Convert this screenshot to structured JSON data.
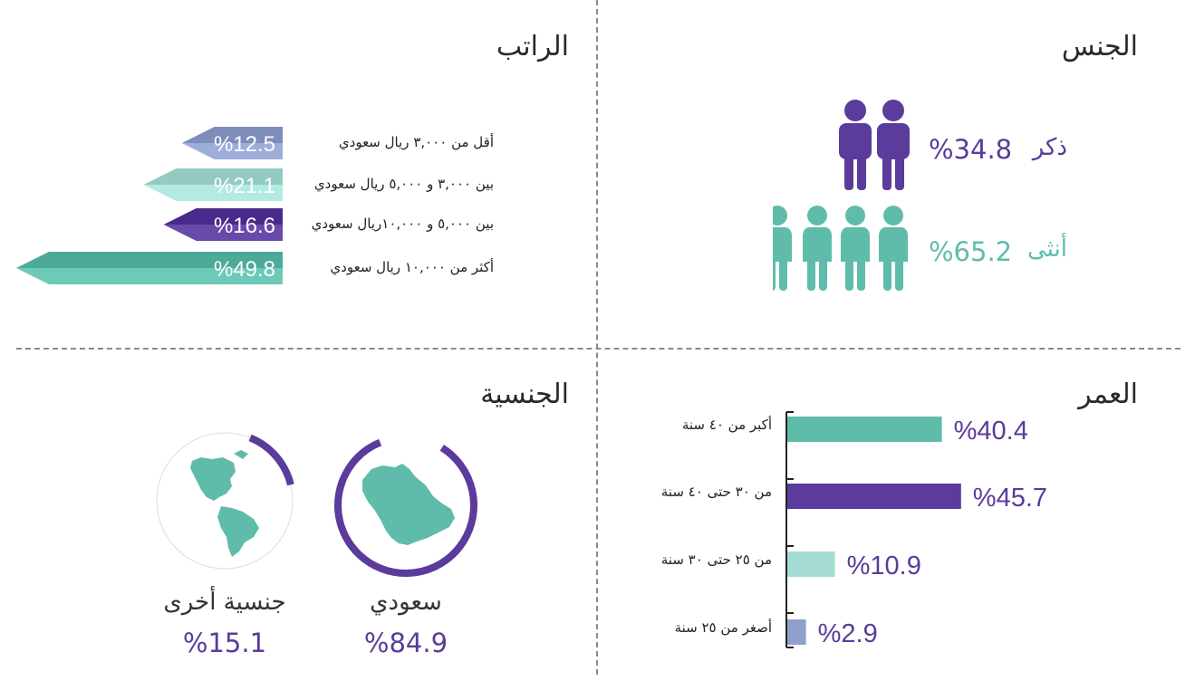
{
  "titles": {
    "gender": "الجنس",
    "salary": "الراتب",
    "age": "العمر",
    "nationality": "الجنسية"
  },
  "colors": {
    "purple": "#5b3b9b",
    "teal": "#5fbcaa",
    "light_teal": "#a5dcd3",
    "slate_blue": "#8fa0cc"
  },
  "gender": {
    "male": {
      "label": "ذكر",
      "value": "%34.8",
      "icon": "male-figure-icon",
      "icon_count": 2
    },
    "female": {
      "label": "أنثى",
      "value": "%65.2",
      "icon": "female-figure-icon",
      "icon_count": 4
    }
  },
  "chart_data": [
    {
      "type": "bar",
      "title": "الراتب",
      "categories": [
        "أقل من ٣,٠٠٠ ريال سعودي",
        "بين ٣,٠٠٠ و ٥,٠٠٠ ريال سعودي",
        "بين ٥,٠٠٠ و ١٠,٠٠٠ريال سعودي",
        "أكثر من ١٠,٠٠٠ ريال سعودي"
      ],
      "values": [
        12.5,
        21.1,
        16.6,
        49.8
      ],
      "value_labels": [
        "%12.5",
        "%21.1",
        "%16.6",
        "%49.8"
      ],
      "bar_colors": [
        "#8fa0cc",
        "#a5dcd3",
        "#5b3b9b",
        "#5fbcaa"
      ]
    },
    {
      "type": "bar",
      "title": "العمر",
      "categories": [
        "أكبر من ٤٠ سنة",
        "من ٣٠ حتى ٤٠ سنة",
        "من ٢٥ حتى ٣٠ سنة",
        "أصغر من ٢٥ سنة"
      ],
      "values": [
        40.4,
        45.7,
        10.9,
        2.9
      ],
      "value_labels": [
        "%40.4",
        "%45.7",
        "%10.9",
        "%2.9"
      ],
      "bar_colors": [
        "#5fbcaa",
        "#5b3b9b",
        "#a5dcd3",
        "#8fa0cc"
      ]
    },
    {
      "type": "pie",
      "title": "الجنسية",
      "categories": [
        "سعودي",
        "جنسية أخرى"
      ],
      "values": [
        84.9,
        15.1
      ],
      "value_labels": [
        "%84.9",
        "%15.1"
      ],
      "icons": [
        "saudi-map-icon",
        "globe-americas-icon"
      ]
    }
  ]
}
